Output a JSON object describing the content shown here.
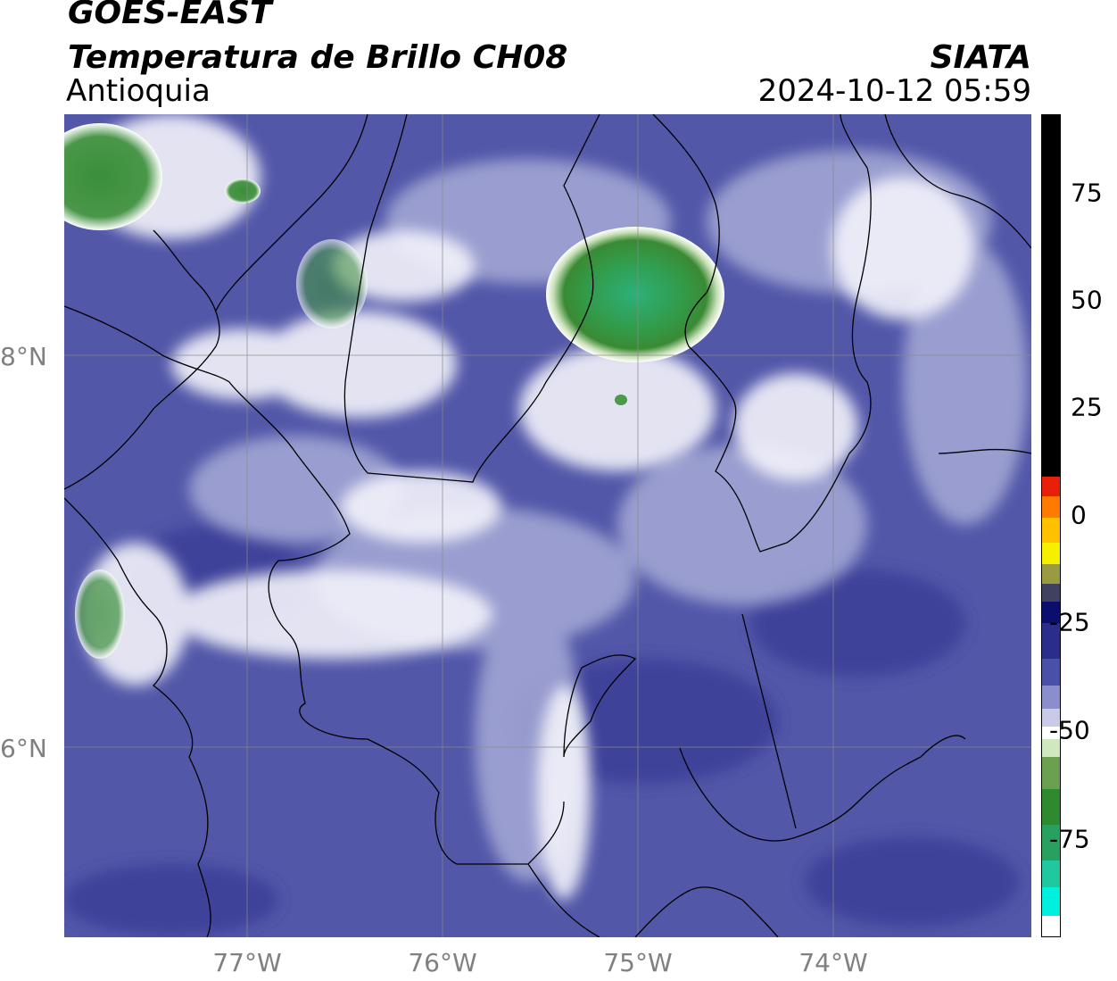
{
  "header": {
    "satellite": "GOES-EAST",
    "product": "Temperatura de Brillo CH08",
    "region": "Antioquia",
    "agency": "SIATA",
    "datetime": "2024-10-12 05:59"
  },
  "axes": {
    "lat_labels": [
      "8°N",
      "6°N"
    ],
    "lon_labels": [
      "77°W",
      "76°W",
      "75°W",
      "74°W"
    ]
  },
  "colorbar": {
    "ticks": [
      "75",
      "50",
      "25",
      "0",
      "-25",
      "-50",
      "-75"
    ],
    "colors": {
      "warm_black": "#000000",
      "red": "#e8200a",
      "orange": "#ff9a00",
      "yellow": "#f5f000",
      "dark_navy": "#0a0f6e",
      "blue": "#3a40a0",
      "lavender": "#b8bce0",
      "white": "#ffffff",
      "green": "#2e8a2e",
      "teal": "#20c8a0",
      "cyan": "#00f0e0"
    }
  },
  "map_colors": {
    "background_blue": "#5257a8",
    "deep_blue": "#3a3f96",
    "lavender": "#a4a8d4",
    "cloud_white": "#f2f2fa",
    "cold_green": "#3a8f3a",
    "core_teal": "#2aa878"
  }
}
